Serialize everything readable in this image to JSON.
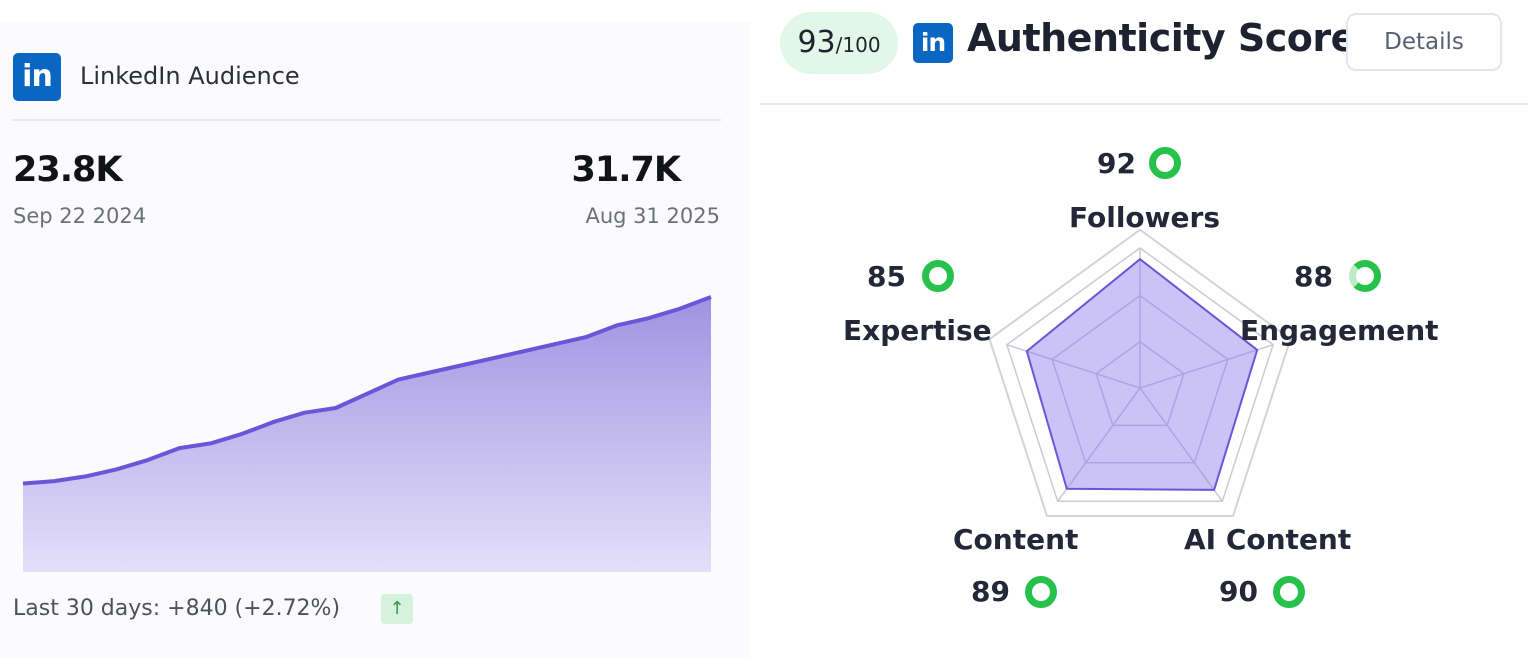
{
  "audience": {
    "title": "LinkedIn Audience",
    "logo_text": "in",
    "start": {
      "value": "23.8K",
      "date": "Sep 22 2024"
    },
    "end": {
      "value": "31.7K",
      "date": "Aug 31 2025"
    },
    "footer": "Last 30 days: +840 (+2.72%)",
    "trend_icon": "arrow-up-icon",
    "trend_glyph": "↑",
    "accent_color": "#6a56d8"
  },
  "authenticity": {
    "score": "93",
    "score_total": "/100",
    "logo_text": "in",
    "title": "Authenticity Score",
    "details_label": "Details",
    "dimensions": [
      {
        "label": "Followers",
        "score": "92"
      },
      {
        "label": "Engagement",
        "score": "88"
      },
      {
        "label": "AI Content",
        "score": "90"
      },
      {
        "label": "Content",
        "score": "89"
      },
      {
        "label": "Expertise",
        "score": "85"
      }
    ]
  },
  "chart_data": {
    "type": "area",
    "title": "",
    "xlabel": "",
    "ylabel": "",
    "x_start": "Sep 22 2024",
    "x_end": "Aug 31 2025",
    "values": [
      23.8,
      23.9,
      24.1,
      24.4,
      24.8,
      25.3,
      25.5,
      25.9,
      26.4,
      26.8,
      27.0,
      27.6,
      28.2,
      28.5,
      28.8,
      29.1,
      29.4,
      29.7,
      30.0,
      30.5,
      30.8,
      31.2,
      31.7
    ],
    "unit": "K",
    "ylim": [
      19.5,
      31.7
    ],
    "color": "#6a56d8",
    "grid": false
  }
}
